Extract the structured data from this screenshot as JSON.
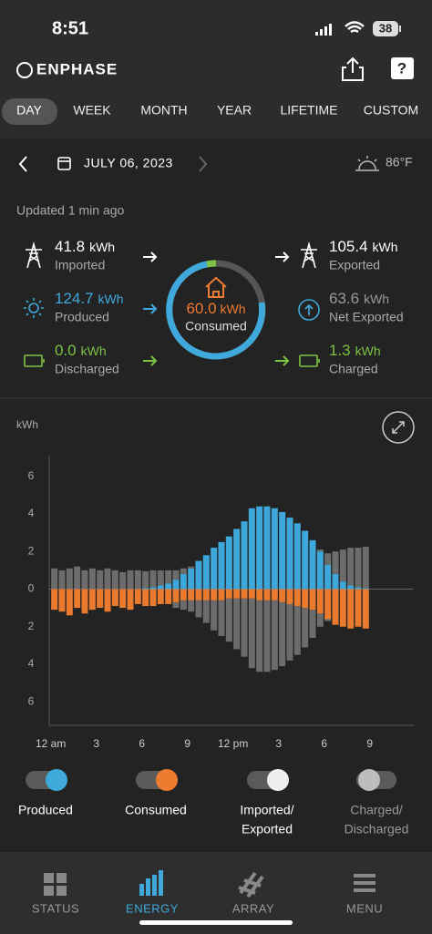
{
  "status_bar": {
    "time": "8:51",
    "battery": "38"
  },
  "header": {
    "brand": "ENPHASE"
  },
  "tabs": [
    "DAY",
    "WEEK",
    "MONTH",
    "YEAR",
    "LIFETIME",
    "CUSTOM"
  ],
  "active_tab": 0,
  "date": "JULY 06, 2023",
  "temperature": "86°F",
  "updated": "Updated 1 min ago",
  "flows": [
    {
      "value": "41.8",
      "unit": "kWh",
      "label": "Imported",
      "color": "#ffffff"
    },
    {
      "value": "124.7",
      "unit": "kWh",
      "label": "Produced",
      "color": "#3fa9dc"
    },
    {
      "value": "0.0",
      "unit": "kWh",
      "label": "Discharged",
      "color": "#7dc242"
    },
    {
      "value": "105.4",
      "unit": "kWh",
      "label": "Exported",
      "color": "#ffffff"
    },
    {
      "value": "63.6",
      "unit": "kWh",
      "label": "Net Exported",
      "color": "#9a9a9a"
    },
    {
      "value": "1.3",
      "unit": "kWh",
      "label": "Charged",
      "color": "#7dc242"
    }
  ],
  "center": {
    "value": "60.0",
    "unit": "kWh",
    "label": "Consumed",
    "color": "#ee7b30"
  },
  "chart_data": {
    "type": "bar",
    "y_label": "kWh",
    "x": [
      0,
      0.5,
      1,
      1.5,
      2,
      2.5,
      3,
      3.5,
      4,
      4.5,
      5,
      5.5,
      6,
      6.5,
      7,
      7.5,
      8,
      8.5,
      9,
      9.5,
      10,
      10.5,
      11,
      11.5,
      12,
      12.5,
      13,
      13.5,
      14,
      14.5,
      15,
      15.5,
      16,
      16.5,
      17,
      17.5,
      18,
      18.5,
      19,
      19.5,
      20,
      20.5
    ],
    "series": [
      {
        "color": "#3ea8db",
        "values": [
          0,
          0,
          0,
          0,
          0,
          0,
          0,
          0,
          0,
          0,
          0,
          0,
          0.05,
          0.1,
          0.2,
          0.3,
          0.5,
          0.8,
          1.1,
          1.5,
          1.8,
          2.2,
          2.5,
          2.8,
          3.2,
          3.6,
          4.3,
          4.4,
          4.4,
          4.3,
          4.1,
          3.8,
          3.5,
          3.1,
          2.6,
          2.0,
          1.3,
          0.8,
          0.4,
          0.2,
          0.1,
          0.05
        ]
      },
      {
        "color": "#6c6c6c",
        "values": [
          1.1,
          1.0,
          1.1,
          1.2,
          1.0,
          1.1,
          1.0,
          1.1,
          1.0,
          0.9,
          1.0,
          1.0,
          0.9,
          0.9,
          0.8,
          0.7,
          0.5,
          0.3,
          0.1,
          0,
          0,
          0,
          0,
          0,
          0,
          0,
          0,
          0,
          0,
          0,
          0,
          0,
          0,
          0,
          0,
          0.1,
          0.6,
          1.2,
          1.7,
          2.0,
          2.1,
          2.2
        ]
      },
      {
        "color": "#ea7a2e",
        "values": [
          -1.1,
          -1.2,
          -1.4,
          -1.0,
          -1.3,
          -1.1,
          -1.0,
          -1.2,
          -0.9,
          -1.0,
          -1.1,
          -0.8,
          -0.9,
          -0.9,
          -0.8,
          -0.8,
          -0.7,
          -0.6,
          -0.6,
          -0.6,
          -0.6,
          -0.6,
          -0.6,
          -0.5,
          -0.5,
          -0.5,
          -0.5,
          -0.6,
          -0.6,
          -0.6,
          -0.7,
          -0.8,
          -0.9,
          -1.0,
          -1.1,
          -1.3,
          -1.6,
          -1.9,
          -2.0,
          -2.1,
          -2.0,
          -2.1
        ]
      },
      {
        "color": "#6c6c6c",
        "values": [
          0,
          0,
          0,
          0,
          0,
          0,
          0,
          0,
          0,
          0,
          0,
          0,
          0,
          0,
          0,
          0,
          -0.3,
          -0.5,
          -0.6,
          -0.9,
          -1.2,
          -1.6,
          -1.9,
          -2.3,
          -2.7,
          -3.1,
          -3.7,
          -3.8,
          -3.8,
          -3.7,
          -3.4,
          -3.0,
          -2.6,
          -2.1,
          -1.5,
          -0.7,
          -0.1,
          0,
          0,
          0,
          0,
          0
        ]
      }
    ],
    "xlim": [
      -0.1,
      23.9
    ],
    "xticks": [
      {
        "value": 0,
        "label": "12 am"
      },
      3,
      6,
      9,
      {
        "value": 12,
        "label": "12 pm"
      },
      {
        "value": 15,
        "label": "3"
      },
      {
        "value": 18,
        "label": "6"
      },
      {
        "value": 21,
        "label": "9"
      }
    ],
    "ylim": [
      -7.2,
      7.1
    ],
    "yticks": [
      6,
      4,
      2,
      0,
      {
        "value": -2,
        "label": "2"
      },
      {
        "value": -4,
        "label": "4"
      },
      {
        "value": -6,
        "label": "6"
      }
    ],
    "grid": false
  },
  "toggles": [
    {
      "label": [
        "Produced"
      ],
      "color": "#3fa9dc",
      "on": true
    },
    {
      "label": [
        "Consumed"
      ],
      "color": "#ee7b30",
      "on": true
    },
    {
      "label": [
        "Imported/",
        "Exported"
      ],
      "color": "#eeeeee",
      "on": true
    },
    {
      "label": [
        "Charged/",
        "Discharged"
      ],
      "color": "#bdbdbd",
      "on": false
    }
  ],
  "nav": [
    "STATUS",
    "ENERGY",
    "ARRAY",
    "MENU"
  ],
  "active_nav": 1
}
